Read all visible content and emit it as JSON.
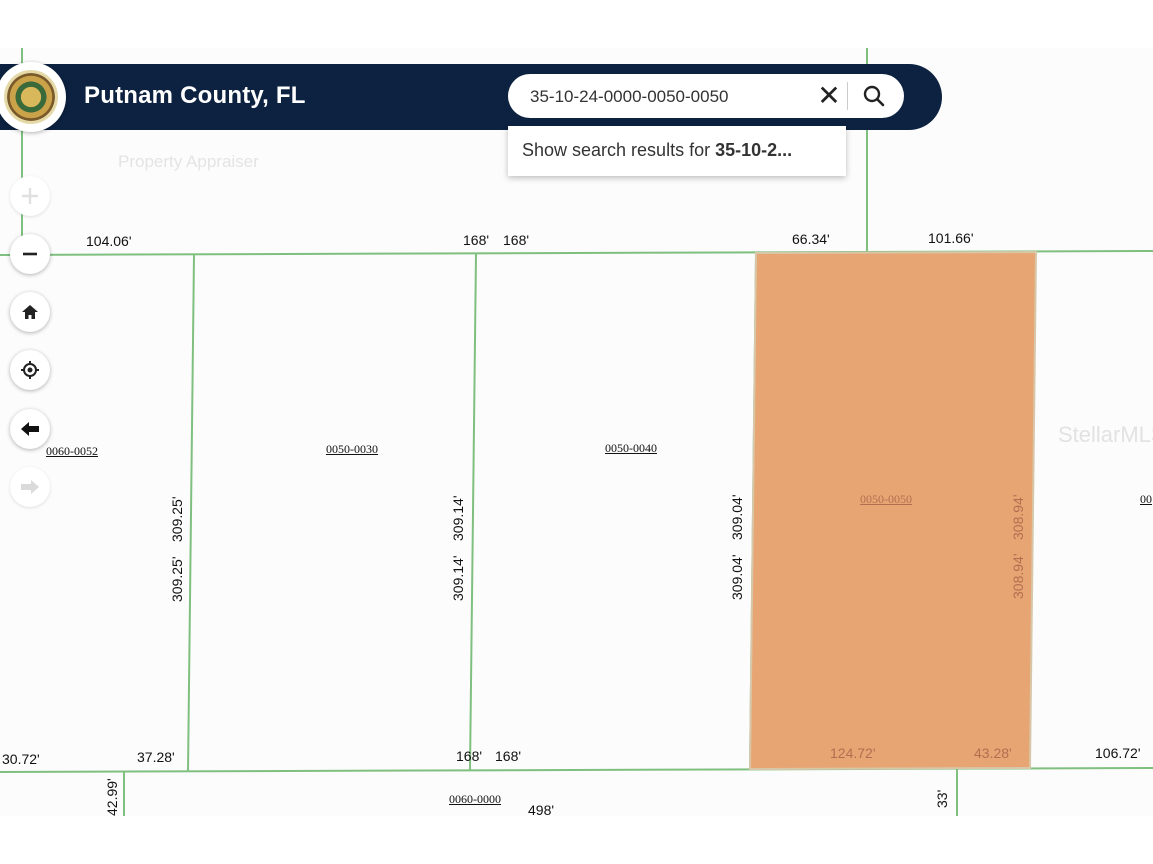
{
  "header": {
    "title": "Putnam County, FL",
    "subtitle": "Property Appraiser"
  },
  "search": {
    "value": "35-10-24-0000-0050-0050",
    "clear_symbol": "✕",
    "dropdown_prefix": "Show search results for ",
    "dropdown_query": "35-10-2..."
  },
  "controls": {
    "zoom_in": "+",
    "zoom_out": "−"
  },
  "colors": {
    "header": "#0c2240",
    "selected_parcel": "#e8a574",
    "parcel_line": "#7fc07f"
  },
  "parcels": {
    "left_edge": "0060-0052",
    "p1": "0050-0030",
    "p2": "0050-0040",
    "selected": "0050-0050",
    "right_edge": "00",
    "bottom": "0060-0000"
  },
  "dims": {
    "top_104": "104.06'",
    "top_168a": "168'",
    "top_168b": "168'",
    "top_6634": "66.34'",
    "top_10166": "101.66'",
    "bot_3072": "30.72'",
    "bot_3728": "37.28'",
    "bot_168a": "168'",
    "bot_168b": "168'",
    "bot_12472": "124.72'",
    "bot_4328": "43.28'",
    "bot_10672": "106.72'",
    "v_30925a": "309.25'",
    "v_30925b": "309.25'",
    "v_30914a": "309.14'",
    "v_30914b": "309.14'",
    "v_30904a": "309.04'",
    "v_30904b": "309.04'",
    "v_30894a": "308.94'",
    "v_30894b": "308.94'",
    "bot_4299": "42.99'",
    "bot_498": "498'",
    "bot_33": "33'"
  },
  "watermark": "StellarMLS"
}
